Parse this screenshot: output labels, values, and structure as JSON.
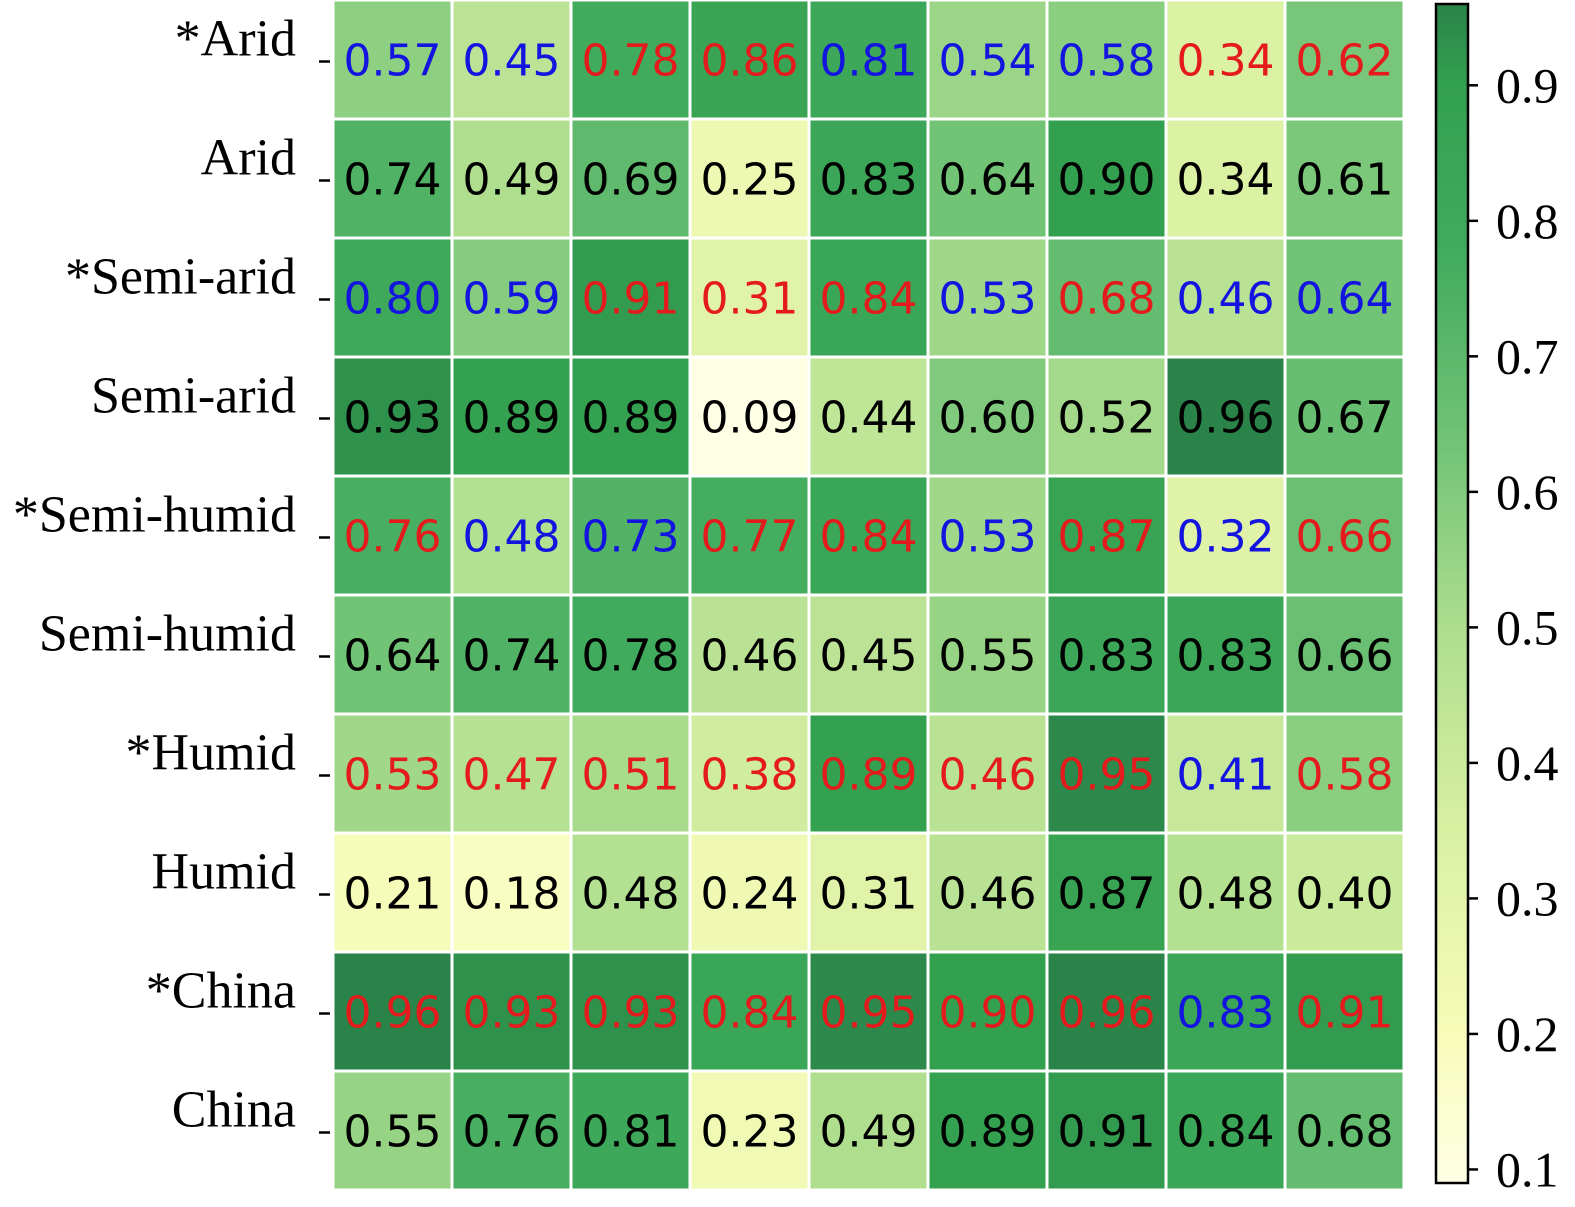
{
  "chart_data": {
    "type": "heatmap",
    "title": "",
    "xlabel": "",
    "ylabel": "",
    "rows": [
      "*Arid",
      "Arid",
      "*Semi-arid",
      "Semi-arid",
      "*Semi-humid",
      "Semi-humid",
      "*Humid",
      "Humid",
      "*China",
      "China"
    ],
    "values": [
      [
        0.57,
        0.45,
        0.78,
        0.86,
        0.81,
        0.54,
        0.58,
        0.34,
        0.62
      ],
      [
        0.74,
        0.49,
        0.69,
        0.25,
        0.83,
        0.64,
        0.9,
        0.34,
        0.61
      ],
      [
        0.8,
        0.59,
        0.91,
        0.31,
        0.84,
        0.53,
        0.68,
        0.46,
        0.64
      ],
      [
        0.93,
        0.89,
        0.89,
        0.09,
        0.44,
        0.6,
        0.52,
        0.96,
        0.67
      ],
      [
        0.76,
        0.48,
        0.73,
        0.77,
        0.84,
        0.53,
        0.87,
        0.32,
        0.66
      ],
      [
        0.64,
        0.74,
        0.78,
        0.46,
        0.45,
        0.55,
        0.83,
        0.83,
        0.66
      ],
      [
        0.53,
        0.47,
        0.51,
        0.38,
        0.89,
        0.46,
        0.95,
        0.41,
        0.58
      ],
      [
        0.21,
        0.18,
        0.48,
        0.24,
        0.31,
        0.46,
        0.87,
        0.48,
        0.4
      ],
      [
        0.96,
        0.93,
        0.93,
        0.84,
        0.95,
        0.9,
        0.96,
        0.83,
        0.91
      ],
      [
        0.55,
        0.76,
        0.81,
        0.23,
        0.49,
        0.89,
        0.91,
        0.84,
        0.68
      ]
    ],
    "label_colors": [
      [
        "blue",
        "blue",
        "red",
        "red",
        "blue",
        "blue",
        "blue",
        "red",
        "red"
      ],
      [
        "black",
        "black",
        "black",
        "black",
        "black",
        "black",
        "black",
        "black",
        "black"
      ],
      [
        "blue",
        "blue",
        "red",
        "red",
        "red",
        "blue",
        "red",
        "blue",
        "blue"
      ],
      [
        "black",
        "black",
        "black",
        "black",
        "black",
        "black",
        "black",
        "black",
        "black"
      ],
      [
        "red",
        "blue",
        "blue",
        "red",
        "red",
        "blue",
        "red",
        "blue",
        "red"
      ],
      [
        "black",
        "black",
        "black",
        "black",
        "black",
        "black",
        "black",
        "black",
        "black"
      ],
      [
        "red",
        "red",
        "red",
        "red",
        "red",
        "red",
        "red",
        "blue",
        "red"
      ],
      [
        "black",
        "black",
        "black",
        "black",
        "black",
        "black",
        "black",
        "black",
        "black"
      ],
      [
        "red",
        "red",
        "red",
        "red",
        "red",
        "red",
        "red",
        "blue",
        "red"
      ],
      [
        "black",
        "black",
        "black",
        "black",
        "black",
        "black",
        "black",
        "black",
        "black"
      ]
    ],
    "text_colors": {
      "red": "#e41a1c",
      "blue": "#1414e0",
      "black": "#000000"
    },
    "colormap": "YlGn",
    "colormap_stops": [
      {
        "v": 0.09,
        "color": "#ffffe5"
      },
      {
        "v": 0.2,
        "color": "#f7fcb9"
      },
      {
        "v": 0.35,
        "color": "#d9f0a3"
      },
      {
        "v": 0.5,
        "color": "#addd8e"
      },
      {
        "v": 0.62,
        "color": "#78c679"
      },
      {
        "v": 0.78,
        "color": "#41ab5d"
      },
      {
        "v": 0.9,
        "color": "#33a050"
      },
      {
        "v": 0.96,
        "color": "#2a844a"
      }
    ],
    "colorbar": {
      "vmin": 0.09,
      "vmax": 0.96,
      "ticks": [
        0.1,
        0.2,
        0.3,
        0.4,
        0.5,
        0.6,
        0.7,
        0.8,
        0.9
      ],
      "tick_labels": [
        "0.1",
        "0.2",
        "0.3",
        "0.4",
        "0.5",
        "0.6",
        "0.7",
        "0.8",
        "0.9"
      ]
    },
    "grid_line_color": "#ffffff"
  }
}
